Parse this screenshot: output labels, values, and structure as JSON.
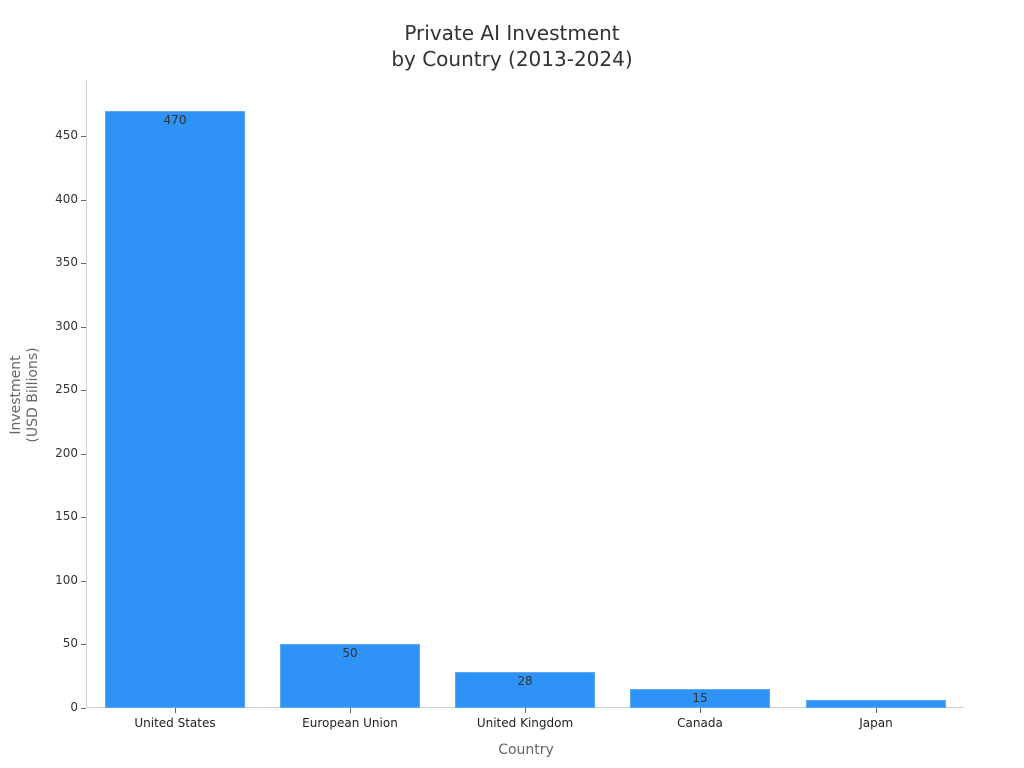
{
  "chart_data": {
    "type": "bar",
    "title": "Private AI Investment\nby Country (2013-2024)",
    "title_lines": [
      "Private AI Investment",
      "by Country (2013-2024)"
    ],
    "categories": [
      "United States",
      "European Union",
      "United Kingdom",
      "Canada",
      "Japan"
    ],
    "values": [
      470,
      50,
      28,
      15,
      6
    ],
    "data_labels": [
      "470",
      "50",
      "28",
      "15",
      ""
    ],
    "xlabel": "Country",
    "ylabel": "Investment\n(USD Billions)",
    "ylabel_lines": [
      "Investment",
      "(USD Billions)"
    ],
    "yticks": [
      0,
      50,
      100,
      150,
      200,
      250,
      300,
      350,
      400,
      450
    ],
    "ylim": [
      0,
      495
    ],
    "grid": false,
    "legend": null,
    "bar_color": "#2e92f7"
  }
}
